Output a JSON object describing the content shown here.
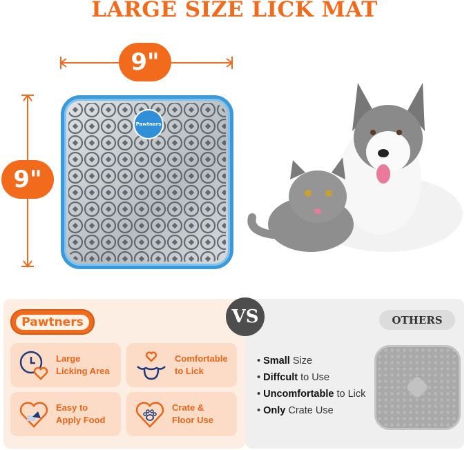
{
  "title": "LARGE SIZE LICK MAT",
  "dimensions": {
    "width": "9\"",
    "height": "9\""
  },
  "mat_logo": "Pawtners",
  "colors": {
    "brand_orange": "#f26a1b",
    "mat_blue": "#3a9ad9",
    "icon_navy": "#1f3a7a"
  },
  "comparison": {
    "vs": "VS",
    "brand_badge": "Pawtners",
    "features": [
      {
        "icon": "clock-heart-icon",
        "label_line1": "Large",
        "label_line2": "Licking Area"
      },
      {
        "icon": "smile-heart-icon",
        "label_line1": "Comfortable",
        "label_line2": "to Lick"
      },
      {
        "icon": "heart-spatula-icon",
        "label_line1": "Easy to",
        "label_line2": "Apply Food"
      },
      {
        "icon": "heart-paw-icon",
        "label_line1": "Crate &",
        "label_line2": "Floor Use"
      }
    ],
    "others_label": "OTHERS",
    "others_points": [
      {
        "bold": "Small",
        "rest": " Size"
      },
      {
        "bold": "Diffcult",
        "rest": " to Use"
      },
      {
        "bold": "Uncomfortable",
        "rest": " to Lick"
      },
      {
        "bold": "Only",
        "rest": " Crate Use"
      }
    ]
  }
}
